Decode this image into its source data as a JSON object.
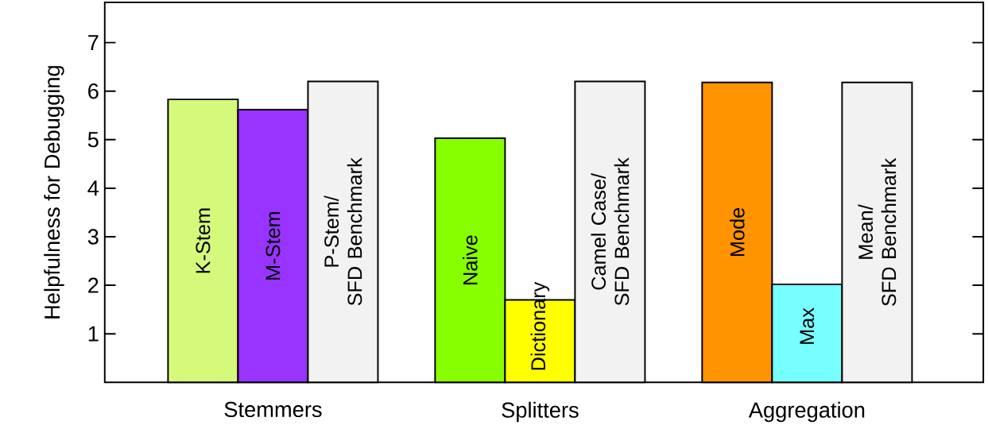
{
  "chart_data": {
    "type": "bar",
    "ylabel": "Helpfulness for Debugging",
    "categories": [
      "Stemmers",
      "Splitters",
      "Aggregation"
    ],
    "series": [
      {
        "colors": [
          "#d5f97a",
          "#88ff00",
          "#ff9400"
        ],
        "values": [
          5.83,
          5.03,
          6.18
        ],
        "value_labels": [
          "K-Stem",
          "Naive",
          "Mode"
        ]
      },
      {
        "colors": [
          "#9933ff",
          "#ffff00",
          "#77ffff"
        ],
        "values": [
          5.62,
          1.7,
          2.02
        ],
        "value_labels": [
          "M-Stem",
          "Dictionary",
          "Max"
        ]
      },
      {
        "colors": [
          "#f2f2f2",
          "#f2f2f2",
          "#f2f2f2"
        ],
        "values": [
          6.2,
          6.2,
          6.18
        ],
        "value_labels": [
          "P-Stem/\nSFD Benchmark",
          "Camel Case/\nSFD Benchmark",
          "Mean/\nSFD Benchmark"
        ]
      }
    ],
    "ylim": [
      0,
      7.83
    ],
    "yticks": [
      1,
      2,
      3,
      4,
      5,
      6,
      7
    ],
    "tick_labels": "y",
    "grid": false
  }
}
